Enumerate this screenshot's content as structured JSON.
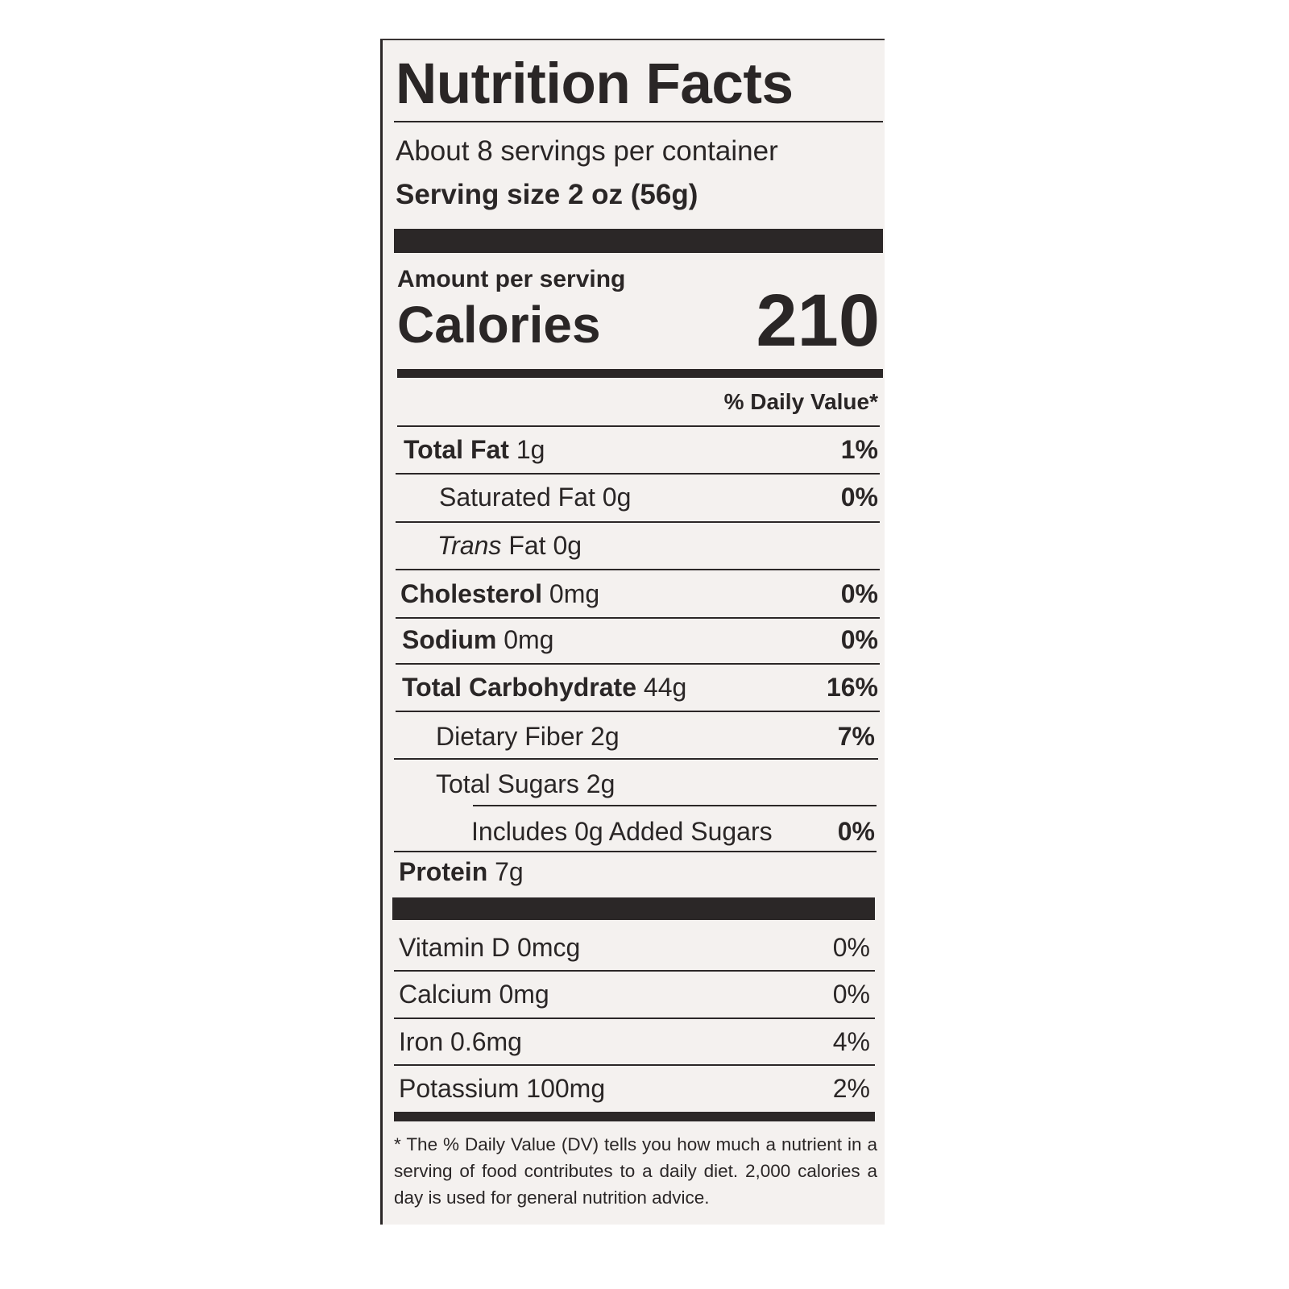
{
  "title": "Nutrition Facts",
  "servings_per_container": "About 8 servings per container",
  "serving_size": "Serving size 2 oz (56g)",
  "amount_per_serving": "Amount per serving",
  "calories_label": "Calories",
  "calories_value": "210",
  "daily_value_header": "% Daily Value*",
  "nutrients": [
    {
      "name": "Total Fat",
      "amount": "1g",
      "dv": "1%"
    },
    {
      "name": "Saturated Fat",
      "amount": "0g",
      "dv": "0%"
    },
    {
      "name": "Trans",
      "name_suffix": "Fat",
      "amount": "0g",
      "dv": ""
    },
    {
      "name": "Cholesterol",
      "amount": "0mg",
      "dv": "0%"
    },
    {
      "name": "Sodium",
      "amount": "0mg",
      "dv": "0%"
    },
    {
      "name": "Total Carbohydrate",
      "amount": "44g",
      "dv": "16%"
    },
    {
      "name": "Dietary Fiber",
      "amount": "2g",
      "dv": "7%"
    },
    {
      "name": "Total Sugars",
      "amount": "2g",
      "dv": ""
    },
    {
      "name": "Includes 0g Added Sugars",
      "amount": "",
      "dv": "0%"
    },
    {
      "name": "Protein",
      "amount": "7g",
      "dv": ""
    }
  ],
  "vitamins": [
    {
      "name": "Vitamin D 0mcg",
      "dv": "0%"
    },
    {
      "name": "Calcium 0mg",
      "dv": "0%"
    },
    {
      "name": "Iron 0.6mg",
      "dv": "4%"
    },
    {
      "name": "Potassium 100mg",
      "dv": "2%"
    }
  ],
  "footnote": "* The % Daily Value (DV) tells you how much a nutrient in a serving of food contributes to a daily diet. 2,000 calories a day is used for general nutrition advice."
}
